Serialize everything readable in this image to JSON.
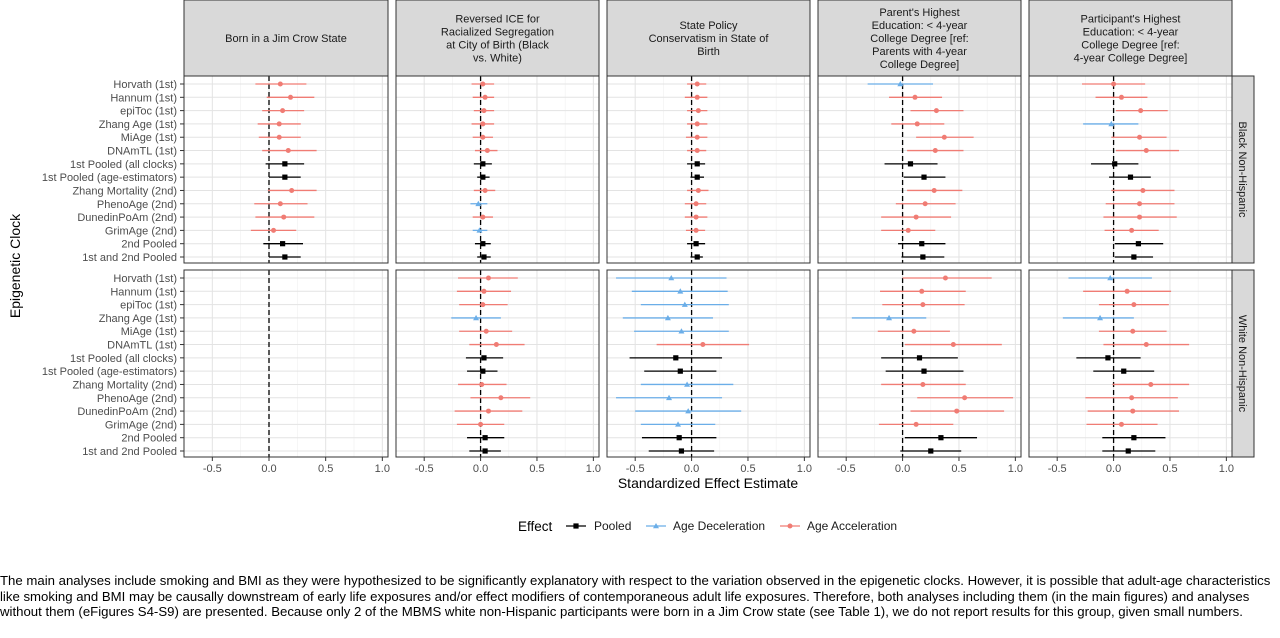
{
  "chart_data": {
    "type": "forest",
    "y_axis_label": "Epigenetic Clock",
    "x_axis_label": "Standardized Effect Estimate",
    "xlim": [
      -0.75,
      1.05
    ],
    "x_ticks": [
      "-0.5",
      "0.0",
      "0.5",
      "1.0"
    ],
    "x_tick_values": [
      -0.5,
      0.0,
      0.5,
      1.0
    ],
    "reference_line_x": 0,
    "grid": true,
    "legend_position": "bottom",
    "legend": {
      "title": "Effect",
      "items": [
        {
          "label": "Pooled",
          "color": "#000000",
          "shape": "square"
        },
        {
          "label": "Age Deceleration",
          "color": "#6baee8",
          "shape": "triangle"
        },
        {
          "label": "Age Acceleration",
          "color": "#f07c74",
          "shape": "circle"
        }
      ]
    },
    "clocks": [
      "Horvath (1st)",
      "Hannum (1st)",
      "epiToc (1st)",
      "Zhang Age (1st)",
      "MiAge (1st)",
      "DNAmTL (1st)",
      "1st Pooled (all clocks)",
      "1st Pooled (age-estimators)",
      "Zhang Mortality (2nd)",
      "PhenoAge (2nd)",
      "DunedinPoAm (2nd)",
      "GrimAge (2nd)",
      "2nd Pooled",
      "1st and 2nd Pooled"
    ],
    "pooled_rows": [
      6,
      7,
      12,
      13
    ],
    "columns": [
      {
        "title_lines": [
          "Born in a Jim Crow State"
        ]
      },
      {
        "title_lines": [
          "Reversed ICE for",
          "Racialized Segregation",
          "at City of Birth (Black",
          "vs. White)"
        ]
      },
      {
        "title_lines": [
          "State Policy",
          "Conservatism in State of",
          "Birth"
        ]
      },
      {
        "title_lines": [
          "Parent's Highest",
          "Education: < 4-year",
          "College Degree [ref:",
          "Parents with 4-year",
          "College Degree]"
        ]
      },
      {
        "title_lines": [
          "Participant's Highest",
          "Education: < 4-year",
          "College Degree [ref:",
          "4-year College Degree]"
        ]
      }
    ],
    "rows": [
      {
        "strip_label": "Black Non-Hispanic"
      },
      {
        "strip_label": "White Non-Hispanic"
      }
    ],
    "panels": [
      [
        {
          "estimates": [
            [
              0.1,
              -0.12,
              0.33
            ],
            [
              0.19,
              -0.02,
              0.4
            ],
            [
              0.12,
              -0.06,
              0.31
            ],
            [
              0.09,
              -0.1,
              0.28
            ],
            [
              0.09,
              -0.09,
              0.28
            ],
            [
              0.17,
              -0.06,
              0.42
            ],
            [
              0.14,
              -0.03,
              0.31
            ],
            [
              0.14,
              0.0,
              0.28
            ],
            [
              0.2,
              -0.01,
              0.42
            ],
            [
              0.1,
              -0.13,
              0.34
            ],
            [
              0.13,
              -0.12,
              0.4
            ],
            [
              0.04,
              -0.16,
              0.24
            ],
            [
              0.12,
              -0.05,
              0.3
            ],
            [
              0.14,
              0.0,
              0.28
            ]
          ]
        },
        {
          "estimates": [
            [
              0.02,
              -0.08,
              0.12
            ],
            [
              0.04,
              -0.07,
              0.12
            ],
            [
              0.03,
              -0.06,
              0.12
            ],
            [
              0.02,
              -0.08,
              0.12
            ],
            [
              0.02,
              -0.07,
              0.11
            ],
            [
              0.06,
              -0.05,
              0.15
            ],
            [
              0.02,
              -0.06,
              0.1
            ],
            [
              0.02,
              -0.03,
              0.08
            ],
            [
              0.04,
              -0.06,
              0.13
            ],
            [
              -0.02,
              -0.09,
              0.06
            ],
            [
              0.02,
              -0.07,
              0.11
            ],
            [
              -0.01,
              -0.07,
              0.06
            ],
            [
              0.02,
              -0.05,
              0.09
            ],
            [
              0.03,
              -0.03,
              0.09
            ]
          ]
        },
        {
          "estimates": [
            [
              0.05,
              -0.04,
              0.13
            ],
            [
              0.05,
              -0.06,
              0.14
            ],
            [
              0.06,
              -0.04,
              0.14
            ],
            [
              0.05,
              -0.04,
              0.14
            ],
            [
              0.05,
              -0.05,
              0.14
            ],
            [
              0.05,
              -0.04,
              0.13
            ],
            [
              0.05,
              -0.04,
              0.12
            ],
            [
              0.05,
              -0.01,
              0.11
            ],
            [
              0.06,
              -0.04,
              0.15
            ],
            [
              0.04,
              -0.06,
              0.13
            ],
            [
              0.04,
              -0.06,
              0.14
            ],
            [
              0.04,
              -0.05,
              0.12
            ],
            [
              0.04,
              -0.04,
              0.12
            ],
            [
              0.05,
              -0.01,
              0.1
            ]
          ]
        },
        {
          "estimates": [
            [
              -0.02,
              -0.31,
              0.27
            ],
            [
              0.11,
              -0.12,
              0.35
            ],
            [
              0.3,
              0.07,
              0.54
            ],
            [
              0.13,
              -0.1,
              0.37
            ],
            [
              0.37,
              0.12,
              0.63
            ],
            [
              0.29,
              0.04,
              0.54
            ],
            [
              0.07,
              -0.16,
              0.31
            ],
            [
              0.19,
              0.01,
              0.38
            ],
            [
              0.28,
              0.04,
              0.53
            ],
            [
              0.2,
              -0.06,
              0.47
            ],
            [
              0.12,
              -0.19,
              0.43
            ],
            [
              0.05,
              -0.19,
              0.29
            ],
            [
              0.17,
              -0.04,
              0.38
            ],
            [
              0.18,
              -0.01,
              0.37
            ]
          ]
        },
        {
          "estimates": [
            [
              0.0,
              -0.28,
              0.28
            ],
            [
              0.07,
              -0.16,
              0.3
            ],
            [
              0.24,
              0.02,
              0.48
            ],
            [
              -0.02,
              -0.27,
              0.22
            ],
            [
              0.23,
              -0.02,
              0.47
            ],
            [
              0.29,
              0.02,
              0.58
            ],
            [
              0.01,
              -0.2,
              0.22
            ],
            [
              0.15,
              -0.04,
              0.33
            ],
            [
              0.26,
              -0.02,
              0.54
            ],
            [
              0.23,
              -0.07,
              0.54
            ],
            [
              0.23,
              -0.09,
              0.56
            ],
            [
              0.16,
              -0.08,
              0.4
            ],
            [
              0.22,
              0.01,
              0.44
            ],
            [
              0.18,
              0.01,
              0.35
            ]
          ]
        }
      ],
      [
        {
          "estimates": []
        },
        {
          "estimates": [
            [
              0.07,
              -0.2,
              0.33
            ],
            [
              0.03,
              -0.21,
              0.27
            ],
            [
              0.02,
              -0.19,
              0.24
            ],
            [
              -0.04,
              -0.26,
              0.18
            ],
            [
              0.05,
              -0.19,
              0.28
            ],
            [
              0.14,
              -0.1,
              0.39
            ],
            [
              0.03,
              -0.13,
              0.2
            ],
            [
              0.02,
              -0.12,
              0.15
            ],
            [
              0.01,
              -0.2,
              0.23
            ],
            [
              0.18,
              -0.09,
              0.44
            ],
            [
              0.07,
              -0.23,
              0.37
            ],
            [
              0.0,
              -0.21,
              0.21
            ],
            [
              0.04,
              -0.12,
              0.21
            ],
            [
              0.04,
              -0.1,
              0.18
            ]
          ]
        },
        {
          "estimates": [
            [
              -0.18,
              -0.67,
              0.31
            ],
            [
              -0.1,
              -0.53,
              0.32
            ],
            [
              -0.06,
              -0.45,
              0.33
            ],
            [
              -0.21,
              -0.61,
              0.19
            ],
            [
              -0.09,
              -0.51,
              0.33
            ],
            [
              0.1,
              -0.31,
              0.51
            ],
            [
              -0.14,
              -0.55,
              0.27
            ],
            [
              -0.1,
              -0.42,
              0.22
            ],
            [
              -0.04,
              -0.45,
              0.37
            ],
            [
              -0.2,
              -0.67,
              0.27
            ],
            [
              -0.03,
              -0.5,
              0.44
            ],
            [
              -0.12,
              -0.45,
              0.21
            ],
            [
              -0.11,
              -0.44,
              0.22
            ],
            [
              -0.09,
              -0.38,
              0.2
            ]
          ]
        },
        {
          "estimates": [
            [
              0.38,
              0.0,
              0.79
            ],
            [
              0.17,
              -0.2,
              0.56
            ],
            [
              0.18,
              -0.18,
              0.55
            ],
            [
              -0.12,
              -0.45,
              0.21
            ],
            [
              0.1,
              -0.22,
              0.42
            ],
            [
              0.45,
              0.02,
              0.88
            ],
            [
              0.15,
              -0.19,
              0.49
            ],
            [
              0.19,
              -0.15,
              0.54
            ],
            [
              0.18,
              -0.19,
              0.56
            ],
            [
              0.55,
              0.13,
              0.98
            ],
            [
              0.48,
              0.07,
              0.9
            ],
            [
              0.12,
              -0.21,
              0.45
            ],
            [
              0.34,
              0.02,
              0.66
            ],
            [
              0.25,
              -0.02,
              0.52
            ]
          ]
        },
        {
          "estimates": [
            [
              -0.03,
              -0.4,
              0.34
            ],
            [
              0.12,
              -0.27,
              0.51
            ],
            [
              0.18,
              -0.13,
              0.49
            ],
            [
              -0.12,
              -0.45,
              0.18
            ],
            [
              0.17,
              -0.13,
              0.47
            ],
            [
              0.29,
              -0.09,
              0.67
            ],
            [
              -0.05,
              -0.33,
              0.24
            ],
            [
              0.09,
              -0.18,
              0.36
            ],
            [
              0.33,
              -0.01,
              0.67
            ],
            [
              0.16,
              -0.25,
              0.57
            ],
            [
              0.17,
              -0.23,
              0.58
            ],
            [
              0.07,
              -0.24,
              0.39
            ],
            [
              0.18,
              -0.1,
              0.46
            ],
            [
              0.13,
              -0.1,
              0.37
            ]
          ]
        }
      ]
    ]
  },
  "footnote": "The main analyses include smoking and BMI as they were hypothesized to be significantly explanatory with respect to the variation observed in the epigenetic clocks. However, it is possible that adult-age characteristics like smoking and BMI may be causally downstream of early life exposures and/or effect modifiers of contemporaneous adult life exposures. Therefore, both analyses including them (in the main figures) and analyses without them (eFigures S4-S9) are presented. Because only 2 of the MBMS white non-Hispanic participants were born in a Jim Crow state (see Table 1), we do not report results for this group, given small numbers."
}
